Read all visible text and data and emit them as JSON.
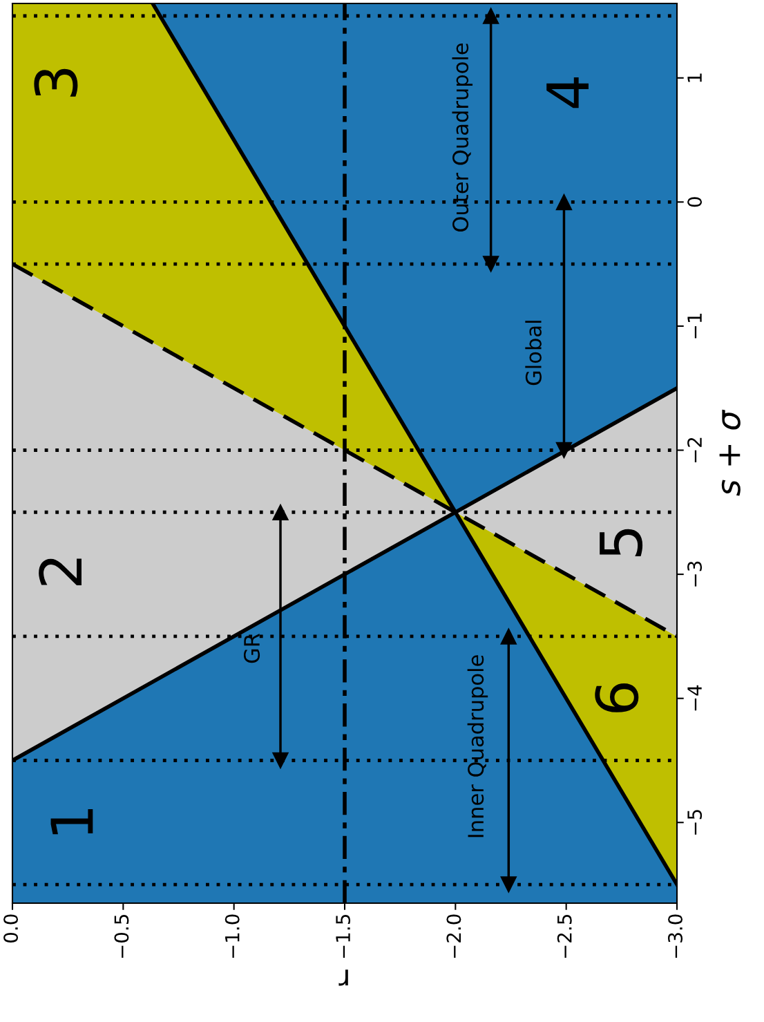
{
  "chart_data": {
    "type": "line",
    "xlabel": "r",
    "ylabel": "s + σ",
    "xlim": [
      0,
      -3
    ],
    "ylim": [
      -5.65,
      1.6
    ],
    "xticks": [
      {
        "value": 0,
        "label": "0.0"
      },
      {
        "value": -0.5,
        "label": "−0.5"
      },
      {
        "value": -1,
        "label": "−1.0"
      },
      {
        "value": -1.5,
        "label": "−1.5"
      },
      {
        "value": -2,
        "label": "−2.0"
      },
      {
        "value": -2.5,
        "label": "−2.5"
      },
      {
        "value": -3,
        "label": "−3.0"
      }
    ],
    "yticks": [
      {
        "value": -5,
        "label": "−5"
      },
      {
        "value": -4,
        "label": "−4"
      },
      {
        "value": -3,
        "label": "−3"
      },
      {
        "value": -2,
        "label": "−2"
      },
      {
        "value": -1,
        "label": "−1"
      },
      0,
      1
    ],
    "grid": false,
    "legend": false,
    "series": [
      {
        "color": "#000000",
        "line_style": "solid",
        "x": [
          0,
          -3
        ],
        "values": [
          -4.5,
          -1.5
        ]
      },
      {
        "color": "#000000",
        "line_style": "solid",
        "x": [
          -0.633,
          -3
        ],
        "values": [
          1.6,
          -5.5
        ]
      },
      {
        "color": "#000000",
        "line_style": "dashed",
        "x": [
          0,
          -3
        ],
        "values": [
          -0.5,
          -3.5
        ]
      },
      {
        "color": "#000000",
        "marker": "triangle",
        "line_style": "solid",
        "x": [
          -1.21,
          -1.21
        ],
        "values": [
          -4.5,
          -2.5
        ]
      },
      {
        "color": "#000000",
        "marker": "triangle",
        "line_style": "solid",
        "x": [
          -2.49,
          -2.49
        ],
        "values": [
          -2,
          0
        ]
      },
      {
        "color": "#000000",
        "marker": "triangle",
        "line_style": "solid",
        "x": [
          -2.16,
          -2.16
        ],
        "values": [
          -0.5,
          1.5
        ]
      },
      {
        "color": "#000000",
        "marker": "triangle",
        "line_style": "solid",
        "x": [
          -2.24,
          -2.24
        ],
        "values": [
          -5.5,
          -3.5
        ]
      }
    ],
    "ref_lines": [
      {
        "axis": "x",
        "value": -1.5,
        "color": "#000000",
        "line_style": "dashdot"
      },
      {
        "axis": "y",
        "value": -5.5,
        "color": "#000000",
        "line_style": "dotted"
      },
      {
        "axis": "y",
        "value": -4.5,
        "color": "#000000",
        "line_style": "dotted"
      },
      {
        "axis": "y",
        "value": -3.5,
        "color": "#000000",
        "line_style": "dotted"
      },
      {
        "axis": "y",
        "value": -2.5,
        "color": "#000000",
        "line_style": "dotted"
      },
      {
        "axis": "y",
        "value": -2,
        "color": "#000000",
        "line_style": "dotted"
      },
      {
        "axis": "y",
        "value": -0.5,
        "color": "#000000",
        "line_style": "dotted"
      },
      {
        "axis": "y",
        "value": 0,
        "color": "#000000",
        "line_style": "dotted"
      },
      {
        "axis": "y",
        "value": 1.5,
        "color": "#000000",
        "line_style": "dotted"
      }
    ],
    "annotations": [
      "1",
      "2",
      "3",
      "4",
      "5",
      "6",
      "GR",
      "Global",
      "Outer Quadrupole",
      "Inner Quadrupole"
    ]
  }
}
